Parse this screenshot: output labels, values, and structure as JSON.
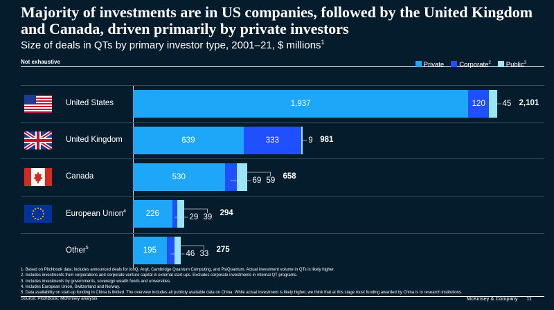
{
  "title": "Majority of investments are in US companies, followed by the United Kingdom and Canada, driven primarily by private investors",
  "subtitle": "Size of deals in QTs by primary investor type, 2001–21, $ millions",
  "subtitle_sup": "1",
  "not_exhaustive": "Not exhaustive",
  "chart_data": {
    "type": "bar",
    "orientation": "horizontal",
    "stacked": true,
    "categories": [
      "United States",
      "United Kingdom",
      "Canada",
      "European Union",
      "Other"
    ],
    "category_sups": [
      "",
      "",
      "",
      "4",
      "5"
    ],
    "series": [
      {
        "name": "Private",
        "sup": "",
        "color": "#1ea7f8",
        "values": [
          1937,
          639,
          530,
          226,
          195
        ]
      },
      {
        "name": "Corporate",
        "sup": "2",
        "color": "#1f4fff",
        "values": [
          120,
          333,
          69,
          29,
          46
        ]
      },
      {
        "name": "Public",
        "sup": "3",
        "color": "#9ae6f6",
        "values": [
          45,
          9,
          59,
          39,
          33
        ]
      }
    ],
    "totals": [
      "2,101",
      "981",
      "658",
      "294",
      "275"
    ],
    "value_labels": [
      [
        "1,937",
        "120",
        "45"
      ],
      [
        "639",
        "333",
        "9"
      ],
      [
        "530",
        "69",
        "59"
      ],
      [
        "226",
        "29",
        "39"
      ],
      [
        "195",
        "46",
        "33"
      ]
    ],
    "legend": "top-right",
    "flags": [
      "us-flag",
      "uk-flag",
      "canada-flag",
      "eu-flag",
      ""
    ]
  },
  "footnotes": [
    "1. Based on Pitchbook data; includes announced deals for IonQ, Arqit, Cambridge Quantum Computing, and PsiQuantum. Actual investment volume in QTs is likely higher.",
    "2. Includes investments from corporations and corporate venture capital in external start-ups. Excludes corporate investments in internal QT programs.",
    "3. Includes investments by governments, sovereign wealth funds and universities.",
    "4. Includes European Union, Switzerland and Norway.",
    "5. Data availability on start-up funding in China is limited. The overview includes all publicly available data on China. While actual investment is likely higher, we think that at this stage most funding awarded by China is to research institutions."
  ],
  "source": "Source: PitchBook; McKinsey analysis",
  "brand": "McKinsey & Company",
  "page_number": "11"
}
